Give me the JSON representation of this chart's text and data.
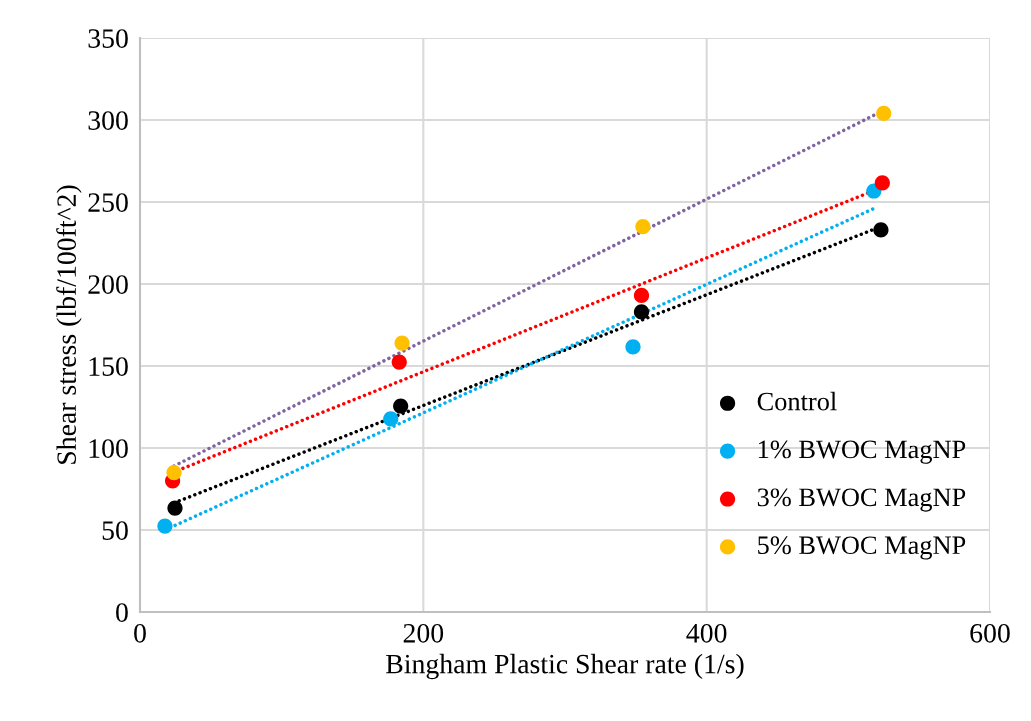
{
  "chart_data": {
    "type": "scatter",
    "xlabel": "Bingham Plastic Shear rate (1/s)",
    "ylabel": "Shear stress (lbf/100ft^2)",
    "xlim": [
      0,
      600
    ],
    "xticks": [
      0,
      200,
      400,
      600
    ],
    "ylim": [
      0,
      350
    ],
    "yticks": [
      0,
      50,
      100,
      150,
      200,
      250,
      300,
      350
    ],
    "grid": true,
    "legend": "bottom right",
    "marker": "circle",
    "series": [
      {
        "type": "line",
        "line_style": "dotted",
        "marker": "none",
        "color": "#000000",
        "x": [
          24,
          523
        ],
        "values": [
          66.5,
          235
        ]
      },
      {
        "type": "line",
        "line_style": "dotted",
        "marker": "none",
        "color": "#00b0f0",
        "x": [
          17.6,
          518
        ],
        "values": [
          50,
          246
        ]
      },
      {
        "type": "line",
        "line_style": "dotted",
        "marker": "none",
        "color": "#ff0000",
        "x": [
          23,
          524
        ],
        "values": [
          85,
          259
        ]
      },
      {
        "type": "line",
        "line_style": "dotted",
        "marker": "none",
        "color": "#8064a2",
        "x": [
          24,
          523
        ],
        "values": [
          89,
          305
        ]
      },
      {
        "name": "Control",
        "color": "#000000",
        "x": [
          24.7,
          184,
          354,
          523
        ],
        "values": [
          63.4,
          125.6,
          183,
          233
        ]
      },
      {
        "name": "1% BWOC MagNP",
        "color": "#00b0f0",
        "x": [
          17.6,
          177,
          348,
          518
        ],
        "values": [
          52.4,
          117.7,
          161.6,
          256.7
        ]
      },
      {
        "name": "3% BWOC MagNP",
        "color": "#ff0000",
        "x": [
          23,
          183,
          354,
          524
        ],
        "values": [
          80,
          152.4,
          193,
          261.6
        ]
      },
      {
        "name": "5% BWOC MagNP",
        "color": "#ffc000",
        "x": [
          24,
          185,
          355,
          525
        ],
        "values": [
          85,
          164,
          235,
          304
        ]
      }
    ]
  }
}
